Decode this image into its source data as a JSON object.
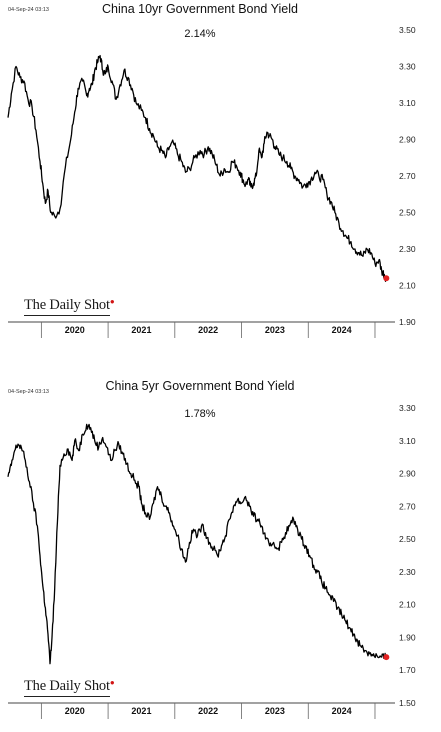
{
  "source_logo": "The Daily Shot",
  "chart_data": [
    {
      "type": "line",
      "stamp": "04-Sep-24 03:13",
      "title": "China 10yr Government Bond Yield",
      "current_label": "2.14%",
      "ylim": [
        1.9,
        3.5
      ],
      "yticks": [
        "3.50",
        "3.30",
        "3.10",
        "2.90",
        "2.70",
        "2.50",
        "2.30",
        "2.10",
        "1.90"
      ],
      "xlim": [
        2019.0,
        2024.8
      ],
      "xticks": [
        {
          "label": "2020",
          "from": 2019.5,
          "to": 2020.5
        },
        {
          "label": "2021",
          "from": 2020.5,
          "to": 2021.5
        },
        {
          "label": "2022",
          "from": 2021.5,
          "to": 2022.5
        },
        {
          "label": "2023",
          "from": 2022.5,
          "to": 2023.5
        },
        {
          "label": "2024",
          "from": 2023.5,
          "to": 2024.5
        }
      ],
      "grid": false,
      "end_marker_color": "#e32222",
      "line_color": "#000000",
      "series": [
        {
          "x": [
            2019.0,
            2019.05,
            2019.12,
            2019.18,
            2019.24,
            2019.3,
            2019.36,
            2019.42,
            2019.48,
            2019.52,
            2019.56,
            2019.6,
            2019.64,
            2019.7,
            2019.78,
            2019.86,
            2019.94,
            2020.0,
            2020.05,
            2020.12,
            2020.18,
            2020.22,
            2020.26,
            2020.3,
            2020.34,
            2020.38,
            2020.42,
            2020.46,
            2020.5,
            2020.56,
            2020.62,
            2020.68,
            2020.74,
            2020.8,
            2020.86,
            2020.92,
            2021.0,
            2021.06,
            2021.12,
            2021.18,
            2021.24,
            2021.3,
            2021.36,
            2021.42,
            2021.48,
            2021.54,
            2021.6,
            2021.66,
            2021.72,
            2021.8,
            2021.88,
            2021.94,
            2022.0,
            2022.06,
            2022.12,
            2022.18,
            2022.24,
            2022.3,
            2022.36,
            2022.42,
            2022.48,
            2022.52,
            2022.56,
            2022.6,
            2022.64,
            2022.68,
            2022.72,
            2022.76,
            2022.8,
            2022.84,
            2022.88,
            2022.92,
            2022.96,
            2023.0,
            2023.06,
            2023.12,
            2023.18,
            2023.24,
            2023.3,
            2023.36,
            2023.42,
            2023.48,
            2023.54,
            2023.6,
            2023.66,
            2023.72,
            2023.78,
            2023.84,
            2023.9,
            2023.96,
            2024.02,
            2024.08,
            2024.14,
            2024.2,
            2024.26,
            2024.32,
            2024.38,
            2024.44,
            2024.5,
            2024.56,
            2024.6,
            2024.64,
            2024.67
          ],
          "y": [
            3.02,
            3.15,
            3.3,
            3.24,
            3.22,
            3.12,
            3.08,
            2.95,
            2.78,
            2.66,
            2.55,
            2.62,
            2.5,
            2.48,
            2.52,
            2.75,
            2.9,
            3.05,
            3.18,
            3.22,
            3.14,
            3.18,
            3.2,
            3.28,
            3.32,
            3.36,
            3.28,
            3.26,
            3.3,
            3.22,
            3.12,
            3.2,
            3.28,
            3.24,
            3.18,
            3.1,
            3.06,
            3.02,
            2.96,
            2.92,
            2.86,
            2.84,
            2.8,
            2.86,
            2.88,
            2.82,
            2.78,
            2.72,
            2.74,
            2.8,
            2.84,
            2.82,
            2.86,
            2.82,
            2.76,
            2.7,
            2.74,
            2.72,
            2.78,
            2.76,
            2.72,
            2.68,
            2.65,
            2.68,
            2.64,
            2.66,
            2.7,
            2.84,
            2.8,
            2.88,
            2.94,
            2.92,
            2.9,
            2.86,
            2.82,
            2.8,
            2.78,
            2.74,
            2.7,
            2.68,
            2.64,
            2.66,
            2.68,
            2.72,
            2.7,
            2.68,
            2.6,
            2.56,
            2.5,
            2.44,
            2.4,
            2.36,
            2.34,
            2.3,
            2.28,
            2.26,
            2.3,
            2.28,
            2.22,
            2.24,
            2.18,
            2.16,
            2.14
          ]
        }
      ]
    },
    {
      "type": "line",
      "stamp": "04-Sep-24 03:13",
      "title": "China 5yr Government Bond Yield",
      "current_label": "1.78%",
      "ylim": [
        1.5,
        3.3
      ],
      "yticks": [
        "3.30",
        "3.10",
        "2.90",
        "2.70",
        "2.50",
        "2.30",
        "2.10",
        "1.90",
        "1.70",
        "1.50"
      ],
      "xlim": [
        2019.0,
        2024.8
      ],
      "xticks": [
        {
          "label": "2020",
          "from": 2019.5,
          "to": 2020.5
        },
        {
          "label": "2021",
          "from": 2020.5,
          "to": 2021.5
        },
        {
          "label": "2022",
          "from": 2021.5,
          "to": 2022.5
        },
        {
          "label": "2023",
          "from": 2022.5,
          "to": 2023.5
        },
        {
          "label": "2024",
          "from": 2023.5,
          "to": 2024.5
        }
      ],
      "grid": false,
      "end_marker_color": "#e32222",
      "line_color": "#000000",
      "series": [
        {
          "x": [
            2019.0,
            2019.05,
            2019.1,
            2019.15,
            2019.2,
            2019.26,
            2019.32,
            2019.38,
            2019.44,
            2019.48,
            2019.52,
            2019.56,
            2019.6,
            2019.63,
            2019.66,
            2019.7,
            2019.74,
            2019.78,
            2019.84,
            2019.9,
            2019.96,
            2020.0,
            2020.06,
            2020.12,
            2020.18,
            2020.24,
            2020.3,
            2020.36,
            2020.42,
            2020.48,
            2020.54,
            2020.6,
            2020.66,
            2020.72,
            2020.78,
            2020.84,
            2020.9,
            2020.96,
            2021.0,
            2021.06,
            2021.12,
            2021.18,
            2021.24,
            2021.3,
            2021.36,
            2021.42,
            2021.48,
            2021.54,
            2021.6,
            2021.66,
            2021.72,
            2021.78,
            2021.84,
            2021.9,
            2021.96,
            2022.02,
            2022.08,
            2022.14,
            2022.2,
            2022.26,
            2022.32,
            2022.38,
            2022.44,
            2022.5,
            2022.56,
            2022.62,
            2022.68,
            2022.74,
            2022.8,
            2022.86,
            2022.92,
            2022.98,
            2023.04,
            2023.1,
            2023.16,
            2023.22,
            2023.28,
            2023.34,
            2023.4,
            2023.46,
            2023.52,
            2023.58,
            2023.64,
            2023.7,
            2023.76,
            2023.82,
            2023.88,
            2023.94,
            2024.0,
            2024.06,
            2024.12,
            2024.18,
            2024.24,
            2024.3,
            2024.36,
            2024.42,
            2024.48,
            2024.54,
            2024.6,
            2024.64,
            2024.67
          ],
          "y": [
            2.88,
            2.95,
            3.04,
            3.08,
            3.06,
            2.98,
            2.85,
            2.72,
            2.58,
            2.4,
            2.22,
            2.08,
            1.92,
            1.74,
            1.9,
            2.2,
            2.6,
            2.95,
            3.02,
            3.05,
            2.98,
            3.1,
            3.04,
            3.14,
            3.2,
            3.18,
            3.1,
            3.06,
            3.12,
            3.06,
            2.98,
            3.04,
            3.08,
            3.02,
            2.96,
            2.9,
            2.86,
            2.82,
            2.72,
            2.66,
            2.62,
            2.72,
            2.82,
            2.76,
            2.7,
            2.66,
            2.58,
            2.52,
            2.44,
            2.36,
            2.48,
            2.56,
            2.52,
            2.58,
            2.54,
            2.48,
            2.44,
            2.4,
            2.46,
            2.52,
            2.62,
            2.7,
            2.74,
            2.72,
            2.76,
            2.7,
            2.64,
            2.62,
            2.58,
            2.5,
            2.46,
            2.48,
            2.44,
            2.48,
            2.54,
            2.58,
            2.62,
            2.56,
            2.5,
            2.46,
            2.4,
            2.34,
            2.3,
            2.24,
            2.2,
            2.16,
            2.12,
            2.08,
            2.04,
            2.0,
            1.96,
            1.92,
            1.88,
            1.84,
            1.82,
            1.8,
            1.8,
            1.78,
            1.78,
            1.78,
            1.78
          ]
        }
      ]
    }
  ]
}
